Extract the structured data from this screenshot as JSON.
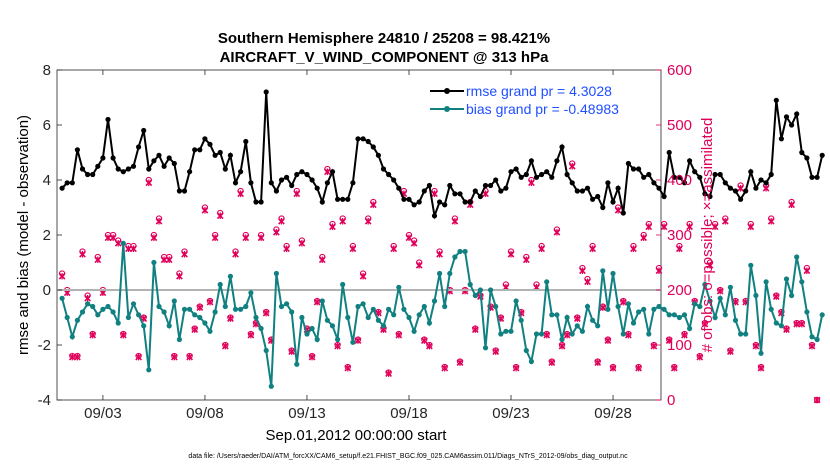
{
  "chart_data": {
    "type": "line",
    "title_line1": "Southern Hemisphere 24810 / 25208 = 98.421%",
    "title_line2": "AIRCRAFT_V_WIND_COMPONENT @ 313 hPa",
    "xlabel": "Sep.01,2012 00:00:00 start",
    "ylabel_left": "rmse and bias (model - observation)",
    "ylabel_right": "# of obs: o=possible; ×=assimilated",
    "footnote": "data file: /Users/raeder/DAI/ATM_forcXX/CAM6_setup/f.e21.FHIST_BGC.f09_025.CAM6assim.011/Diags_NTrS_2012-09/obs_diag_output.nc",
    "xlim": [
      0.75,
      30.35
    ],
    "ylim_left": [
      -4,
      8
    ],
    "ylim_right": [
      0,
      600
    ],
    "x_ticks": [
      3,
      8,
      13,
      18,
      23,
      28
    ],
    "x_tick_labels": [
      "09/03",
      "09/08",
      "09/13",
      "09/18",
      "09/23",
      "09/28"
    ],
    "y_left_ticks": [
      -4,
      -2,
      0,
      2,
      4,
      6,
      8
    ],
    "y_left_tick_labels": [
      "-4",
      "-2",
      "0",
      "2",
      "4",
      "6",
      "8"
    ],
    "y_right_ticks": [
      0,
      100,
      200,
      300,
      400,
      500,
      600
    ],
    "y_right_tick_labels": [
      "0",
      "100",
      "200",
      "300",
      "400",
      "500",
      "600"
    ],
    "x_step": 0.25,
    "x_start": 1.0,
    "legend": [
      {
        "label": "rmse grand pr = 4.3028",
        "color": "#000000"
      },
      {
        "label": "bias grand pr = -0.48983",
        "color": "#118080"
      }
    ],
    "series": [
      {
        "name": "rmse",
        "color": "#000000",
        "values": [
          3.7,
          3.9,
          3.9,
          5.1,
          4.4,
          4.2,
          4.2,
          4.5,
          4.8,
          6.2,
          4.8,
          4.4,
          4.3,
          4.4,
          4.5,
          5.2,
          5.8,
          4.4,
          4.7,
          4.9,
          4.5,
          4.8,
          4.6,
          3.6,
          3.6,
          4.3,
          5.1,
          5.1,
          5.5,
          5.3,
          4.9,
          5.0,
          4.4,
          4.9,
          3.9,
          4.3,
          5.4,
          3.9,
          3.2,
          3.2,
          7.2,
          3.9,
          3.6,
          4.0,
          4.1,
          3.8,
          4.2,
          4.3,
          4.2,
          4.0,
          3.7,
          3.2,
          3.9,
          4.3,
          3.3,
          3.3,
          3.3,
          3.9,
          5.5,
          5.5,
          5.4,
          5.2,
          4.9,
          4.4,
          4.2,
          4.0,
          3.7,
          3.3,
          3.3,
          3.1,
          3.2,
          3.6,
          3.8,
          2.7,
          3.2,
          3.1,
          3.8,
          3.5,
          3.5,
          3.2,
          3.2,
          3.6,
          3.4,
          3.8,
          3.8,
          4.0,
          3.6,
          3.7,
          4.3,
          4.4,
          4.1,
          4.2,
          4.7,
          4.1,
          4.2,
          4.3,
          4.1,
          4.7,
          5.2,
          4.2,
          3.9,
          3.6,
          3.6,
          3.7,
          3.3,
          3.4,
          3.0,
          3.9,
          3.2,
          3.7,
          2.8,
          4.6,
          4.4,
          4.4,
          4.1,
          4.2,
          3.9,
          3.7,
          3.4,
          5.0,
          4.1,
          4.1,
          3.9,
          4.7,
          4.3,
          4.1,
          3.5,
          3.4,
          4.2,
          4.2,
          3.9,
          3.7,
          3.6,
          3.3,
          3.6,
          4.3,
          3.7,
          4.0,
          3.9,
          4.2,
          6.9,
          5.5,
          6.3,
          6.0,
          6.4,
          5.0,
          4.8,
          4.1,
          4.1,
          4.9
        ]
      },
      {
        "name": "bias",
        "color": "#118080",
        "values": [
          -0.3,
          -1.0,
          -1.7,
          -1.1,
          -0.8,
          -0.5,
          -0.6,
          -0.9,
          -0.7,
          -0.6,
          -0.8,
          -1.2,
          1.7,
          -1.0,
          -0.5,
          -0.9,
          -1.3,
          -2.9,
          1.0,
          -0.6,
          -0.8,
          -1.3,
          -0.4,
          -1.8,
          -0.7,
          -0.7,
          -0.9,
          -1.0,
          -1.2,
          -1.5,
          -0.8,
          0.2,
          -0.6,
          0.5,
          -0.7,
          -0.7,
          -0.6,
          -0.1,
          -1.0,
          -1.4,
          -2.2,
          -3.5,
          0.6,
          -0.6,
          -0.5,
          -0.8,
          -2.7,
          -1.0,
          -1.6,
          -1.4,
          -1.8,
          -0.4,
          -1.1,
          -1.3,
          -1.8,
          0.2,
          -1.0,
          -1.9,
          -0.6,
          -0.5,
          -1.0,
          -0.7,
          -1.1,
          -1.3,
          -0.7,
          -0.9,
          0.1,
          -0.7,
          -1.0,
          -1.5,
          -0.9,
          -0.6,
          -1.2,
          -0.4,
          0.6,
          -0.6,
          0.6,
          1.2,
          1.4,
          1.4,
          0.2,
          -0.2,
          0.0,
          -2.1,
          0.0,
          -0.6,
          -1.6,
          -1.5,
          -1.5,
          -0.4,
          -1.1,
          -2.2,
          -2.6,
          -1.6,
          -1.6,
          0.3,
          -0.9,
          -0.9,
          -1.8,
          -1.0,
          -1.6,
          -1.3,
          -1.5,
          -0.6,
          -1.1,
          -1.3,
          0.7,
          -0.7,
          0.6,
          -0.6,
          -1.6,
          -0.5,
          -1.2,
          -0.8,
          -0.7,
          -1.6,
          -0.7,
          -0.6,
          -0.7,
          -0.9,
          -0.9,
          -1.0,
          -0.9,
          -1.4,
          -0.5,
          -0.6,
          0.2,
          -0.4,
          -1.0,
          -0.3,
          -0.9,
          0.1,
          -1.1,
          -1.6,
          -1.6,
          0.9,
          -0.2,
          -2.3,
          0.3,
          -0.7,
          -1.2,
          -1.3,
          0.4,
          -0.2,
          1.2,
          0.3,
          -0.8,
          -1.7,
          -1.8,
          -0.9
        ]
      },
      {
        "name": "obs possible",
        "color": "#e0005a",
        "marker": "o",
        "values": [
          230,
          200,
          80,
          80,
          270,
          190,
          120,
          260,
          200,
          300,
          300,
          290,
          120,
          280,
          280,
          80,
          150,
          400,
          300,
          330,
          260,
          260,
          80,
          230,
          270,
          80,
          130,
          170,
          350,
          180,
          300,
          340,
          100,
          150,
          270,
          380,
          300,
          120,
          140,
          300,
          160,
          110,
          310,
          330,
          280,
          90,
          380,
          290,
          130,
          80,
          180,
          260,
          420,
          320,
          100,
          330,
          60,
          280,
          110,
          230,
          330,
          360,
          160,
          130,
          50,
          280,
          120,
          380,
          300,
          290,
          250,
          110,
          100,
          380,
          270,
          60,
          200,
          330,
          70,
          200,
          360,
          130,
          190,
          380,
          170,
          90,
          150,
          210,
          270,
          60,
          160,
          260,
          400,
          210,
          280,
          120,
          70,
          310,
          100,
          120,
          430,
          150,
          240,
          220,
          280,
          70,
          170,
          110,
          60,
          350,
          180,
          120,
          280,
          60,
          300,
          320,
          100,
          240,
          320,
          110,
          60,
          280,
          120,
          320,
          180,
          80,
          140,
          250,
          320,
          200,
          330,
          90,
          180,
          390,
          180,
          320,
          100,
          60,
          390,
          330,
          190,
          160,
          130,
          360,
          140,
          140,
          240,
          100,
          0
        ]
      },
      {
        "name": "obs assimilated",
        "color": "#e0005a",
        "marker": "x",
        "values": [
          225,
          195,
          78,
          78,
          265,
          185,
          118,
          255,
          195,
          295,
          295,
          285,
          118,
          275,
          275,
          78,
          148,
          395,
          295,
          325,
          255,
          255,
          78,
          225,
          265,
          78,
          128,
          168,
          345,
          178,
          295,
          335,
          98,
          148,
          265,
          375,
          295,
          118,
          138,
          295,
          158,
          108,
          305,
          325,
          275,
          88,
          375,
          285,
          128,
          78,
          178,
          255,
          415,
          315,
          98,
          325,
          58,
          275,
          108,
          225,
          325,
          355,
          158,
          128,
          48,
          275,
          118,
          375,
          295,
          285,
          245,
          108,
          98,
          375,
          265,
          58,
          198,
          325,
          68,
          198,
          355,
          128,
          188,
          375,
          168,
          88,
          148,
          205,
          265,
          58,
          158,
          255,
          395,
          205,
          275,
          118,
          68,
          305,
          98,
          118,
          425,
          148,
          235,
          215,
          275,
          68,
          168,
          108,
          58,
          345,
          178,
          118,
          275,
          58,
          295,
          315,
          98,
          235,
          315,
          108,
          58,
          275,
          118,
          315,
          178,
          78,
          138,
          245,
          315,
          198,
          325,
          88,
          178,
          385,
          178,
          315,
          98,
          58,
          385,
          325,
          188,
          158,
          128,
          355,
          138,
          138,
          235,
          98,
          0
        ]
      }
    ]
  }
}
